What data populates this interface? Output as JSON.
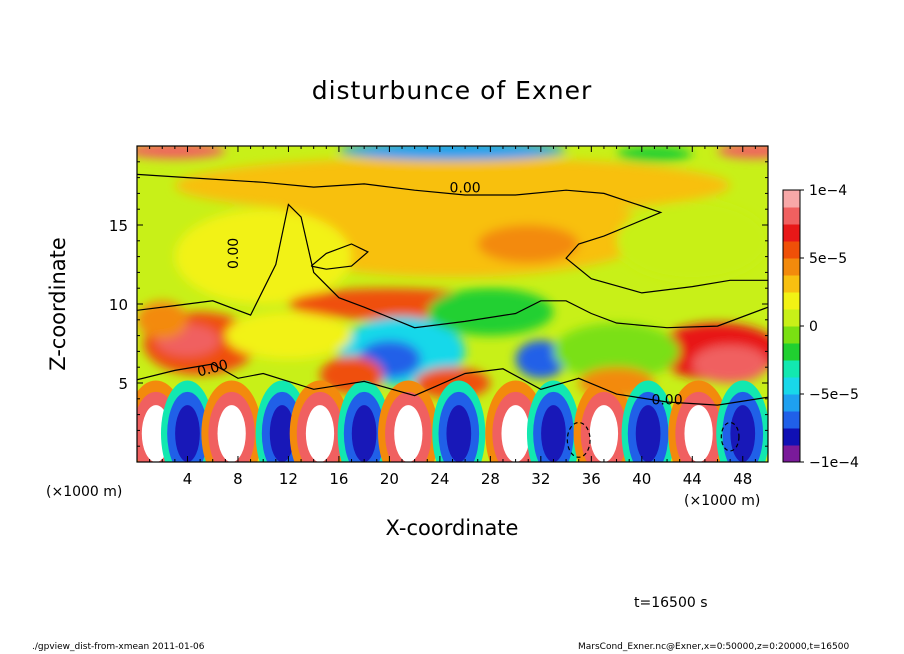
{
  "chart_data": {
    "type": "heatmap",
    "title": "disturbunce of Exner",
    "xlabel": "X-coordinate",
    "ylabel": "Z-coordinate",
    "x_unit": "(×1000 m)",
    "xlim": [
      0,
      50
    ],
    "ylim": [
      0,
      20
    ],
    "x_ticks": [
      "4",
      "8",
      "12",
      "16",
      "20",
      "24",
      "28",
      "32",
      "36",
      "40",
      "44",
      "48"
    ],
    "y_ticks": [
      "5",
      "10",
      "15"
    ],
    "colorbar": {
      "range": [
        -0.0001,
        0.0001
      ],
      "tick_labels": [
        "1e−4",
        "5e−5",
        "0",
        "−5e−5",
        "−1e−4"
      ],
      "colors": [
        "#7a1a9a",
        "#1010b4",
        "#2060e8",
        "#1ea0f0",
        "#18d8ea",
        "#12e8b0",
        "#20d030",
        "#7ae012",
        "#c8f018",
        "#f2f214",
        "#f8c010",
        "#f38a0c",
        "#ef5008",
        "#e81818",
        "#f06060",
        "#f8a8a8"
      ]
    },
    "contour_labels": [
      "0.00",
      "0.00",
      "0.00",
      "0.00"
    ]
  },
  "footer": {
    "time": "t=16500 s",
    "script": "./gpview_dist-from-xmean  2011-01-06",
    "source": "MarsCond_Exner.nc@Exner,x=0:50000,z=0:20000,t=16500"
  }
}
